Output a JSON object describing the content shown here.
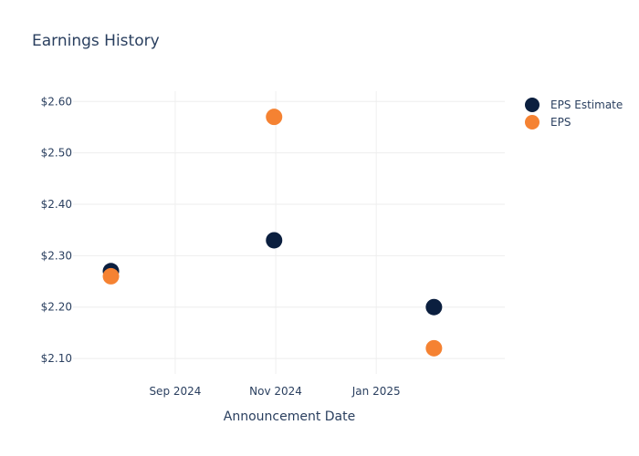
{
  "chart_data": {
    "type": "scatter",
    "title": "Earnings History",
    "xlabel": "Announcement Date",
    "ylabel": "",
    "x_axis_type": "date",
    "x_ticks": [
      {
        "date": "2024-09-01",
        "label": "Sep 2024"
      },
      {
        "date": "2024-11-01",
        "label": "Nov 2024"
      },
      {
        "date": "2025-01-01",
        "label": "Jan 2025"
      }
    ],
    "y_ticks": [
      {
        "value": 2.1,
        "label": "$2.10"
      },
      {
        "value": 2.2,
        "label": "$2.20"
      },
      {
        "value": 2.3,
        "label": "$2.30"
      },
      {
        "value": 2.4,
        "label": "$2.40"
      },
      {
        "value": 2.5,
        "label": "$2.50"
      },
      {
        "value": 2.6,
        "label": "$2.60"
      }
    ],
    "xlim": [
      "2024-07-01",
      "2025-03-20"
    ],
    "ylim": [
      2.07,
      2.62
    ],
    "grid": true,
    "legend_position": "top-right",
    "series": [
      {
        "name": "EPS Estimate",
        "color": "#0b1f3f",
        "points": [
          {
            "x": "2024-07-24",
            "y": 2.27
          },
          {
            "x": "2024-10-31",
            "y": 2.33
          },
          {
            "x": "2025-02-05",
            "y": 2.2
          }
        ]
      },
      {
        "name": "EPS",
        "color": "#f58232",
        "points": [
          {
            "x": "2024-07-24",
            "y": 2.26
          },
          {
            "x": "2024-10-31",
            "y": 2.57
          },
          {
            "x": "2025-02-05",
            "y": 2.12
          }
        ]
      }
    ]
  }
}
